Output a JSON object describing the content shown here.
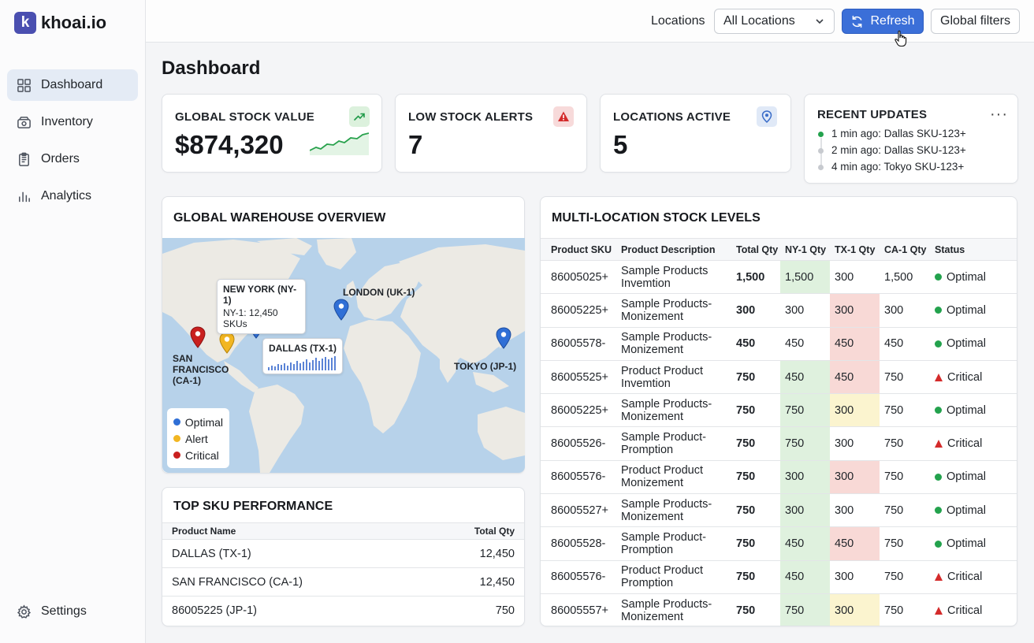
{
  "app": {
    "logo_letter": "k",
    "name": "khoai.io"
  },
  "nav": {
    "items": [
      {
        "label": "Dashboard",
        "icon": "grid-icon",
        "active": true
      },
      {
        "label": "Inventory",
        "icon": "box-icon"
      },
      {
        "label": "Orders",
        "icon": "clipboard-icon"
      },
      {
        "label": "Analytics",
        "icon": "bar-chart-icon"
      }
    ],
    "settings": "Settings"
  },
  "topbar": {
    "locations_label": "Locations",
    "locations_value": "All Locations",
    "refresh": "Refresh",
    "global_filters": "Global filters"
  },
  "page_title": "Dashboard",
  "kpis": {
    "stock_value": {
      "title": "GLOBAL STOCK VALUE",
      "value": "$874,320"
    },
    "low_stock": {
      "title": "LOW STOCK ALERTS",
      "value": "7"
    },
    "locations": {
      "title": "LOCATIONS ACTIVE",
      "value": "5"
    }
  },
  "recent_updates": {
    "title": "RECENT UPDATES",
    "items": [
      "1 min ago: Dallas SKU-123+",
      "2 min ago: Dallas SKU-123+",
      "4 min ago: Tokyo SKU-123+"
    ]
  },
  "map": {
    "title": "GLOBAL WAREHOUSE OVERVIEW",
    "ny_tooltip_title": "NEW YORK (NY-1)",
    "ny_tooltip_sub": "NY-1: 12,450 SKUs",
    "dallas_tooltip_title": "DALLAS (TX-1)",
    "london": "LONDON (UK-1)",
    "tokyo": "TOKYO (JP-1)",
    "sf_line1": "SAN",
    "sf_line2": "FRANCISCO",
    "sf_line3": "(CA-1)",
    "legend": {
      "optimal": "Optimal",
      "alert": "Alert",
      "critical": "Critical"
    },
    "colors": {
      "optimal": "#2f6fd6",
      "alert": "#f2b622",
      "critical": "#c9201f"
    }
  },
  "top_sku": {
    "title": "TOP SKU PERFORMANCE",
    "columns": [
      "Product Name",
      "Total Qty"
    ],
    "rows": [
      [
        "DALLAS (TX-1)",
        "12,450"
      ],
      [
        "SAN FRANCISCO (CA-1)",
        "12,450"
      ],
      [
        "86005225 (JP-1)",
        "750"
      ]
    ]
  },
  "multi_location": {
    "title": "MULTI-LOCATION STOCK LEVELS",
    "columns": [
      "Product SKU",
      "Product Description",
      "Total Qty",
      "NY-1 Qty",
      "TX-1 Qty",
      "CA-1 Qty",
      "Status"
    ],
    "rows": [
      {
        "sku": "86005025+",
        "desc1": "Sample Products",
        "desc2": "Invemtion",
        "total": "1,500",
        "ny": "1,500",
        "tx": "300",
        "ca": "1,500",
        "status": "Optimal"
      },
      {
        "sku": "86005225+",
        "desc1": "Sample Products-",
        "desc2": "Monizement",
        "total": "300",
        "ny": "300",
        "tx": "300",
        "ca": "300",
        "status": "Optimal"
      },
      {
        "sku": "86005578-",
        "desc1": "Sample Products-",
        "desc2": "Monizement",
        "total": "450",
        "ny": "450",
        "tx": "450",
        "ca": "450",
        "status": "Optimal"
      },
      {
        "sku": "86005525+",
        "desc1": "Product Product",
        "desc2": "Invemtion",
        "total": "750",
        "ny": "450",
        "tx": "450",
        "ca": "750",
        "status": "Critical"
      },
      {
        "sku": "86005225+",
        "desc1": "Sample Products-",
        "desc2": "Monizement",
        "total": "750",
        "ny": "750",
        "tx": "300",
        "ca": "750",
        "status": "Optimal"
      },
      {
        "sku": "86005526-",
        "desc1": "Sample Product-",
        "desc2": "Promption",
        "total": "750",
        "ny": "750",
        "tx": "300",
        "ca": "750",
        "status": "Critical"
      },
      {
        "sku": "86005576-",
        "desc1": "Product Product",
        "desc2": "Monizement",
        "total": "750",
        "ny": "300",
        "tx": "300",
        "ca": "750",
        "status": "Optimal"
      },
      {
        "sku": "86005527+",
        "desc1": "Sample Products-",
        "desc2": "Monizement",
        "total": "750",
        "ny": "300",
        "tx": "300",
        "ca": "750",
        "status": "Optimal"
      },
      {
        "sku": "86005528-",
        "desc1": "Sample Product-",
        "desc2": "Promption",
        "total": "750",
        "ny": "450",
        "tx": "450",
        "ca": "750",
        "status": "Optimal"
      },
      {
        "sku": "86005576-",
        "desc1": "Product Product",
        "desc2": "Promption",
        "total": "750",
        "ny": "450",
        "tx": "300",
        "ca": "750",
        "status": "Critical"
      },
      {
        "sku": "86005557+",
        "desc1": "Sample Products-",
        "desc2": "Monizement",
        "total": "750",
        "ny": "750",
        "tx": "300",
        "ca": "750",
        "status": "Critical"
      }
    ],
    "cell_colors": [
      [
        "g",
        "",
        ""
      ],
      [
        "",
        "r",
        ""
      ],
      [
        "",
        "r",
        ""
      ],
      [
        "g",
        "r",
        ""
      ],
      [
        "g",
        "y",
        ""
      ],
      [
        "g",
        "",
        ""
      ],
      [
        "g",
        "r",
        ""
      ],
      [
        "g",
        "",
        ""
      ],
      [
        "g",
        "r",
        ""
      ],
      [
        "g",
        "",
        ""
      ],
      [
        "g",
        "y",
        ""
      ]
    ]
  }
}
